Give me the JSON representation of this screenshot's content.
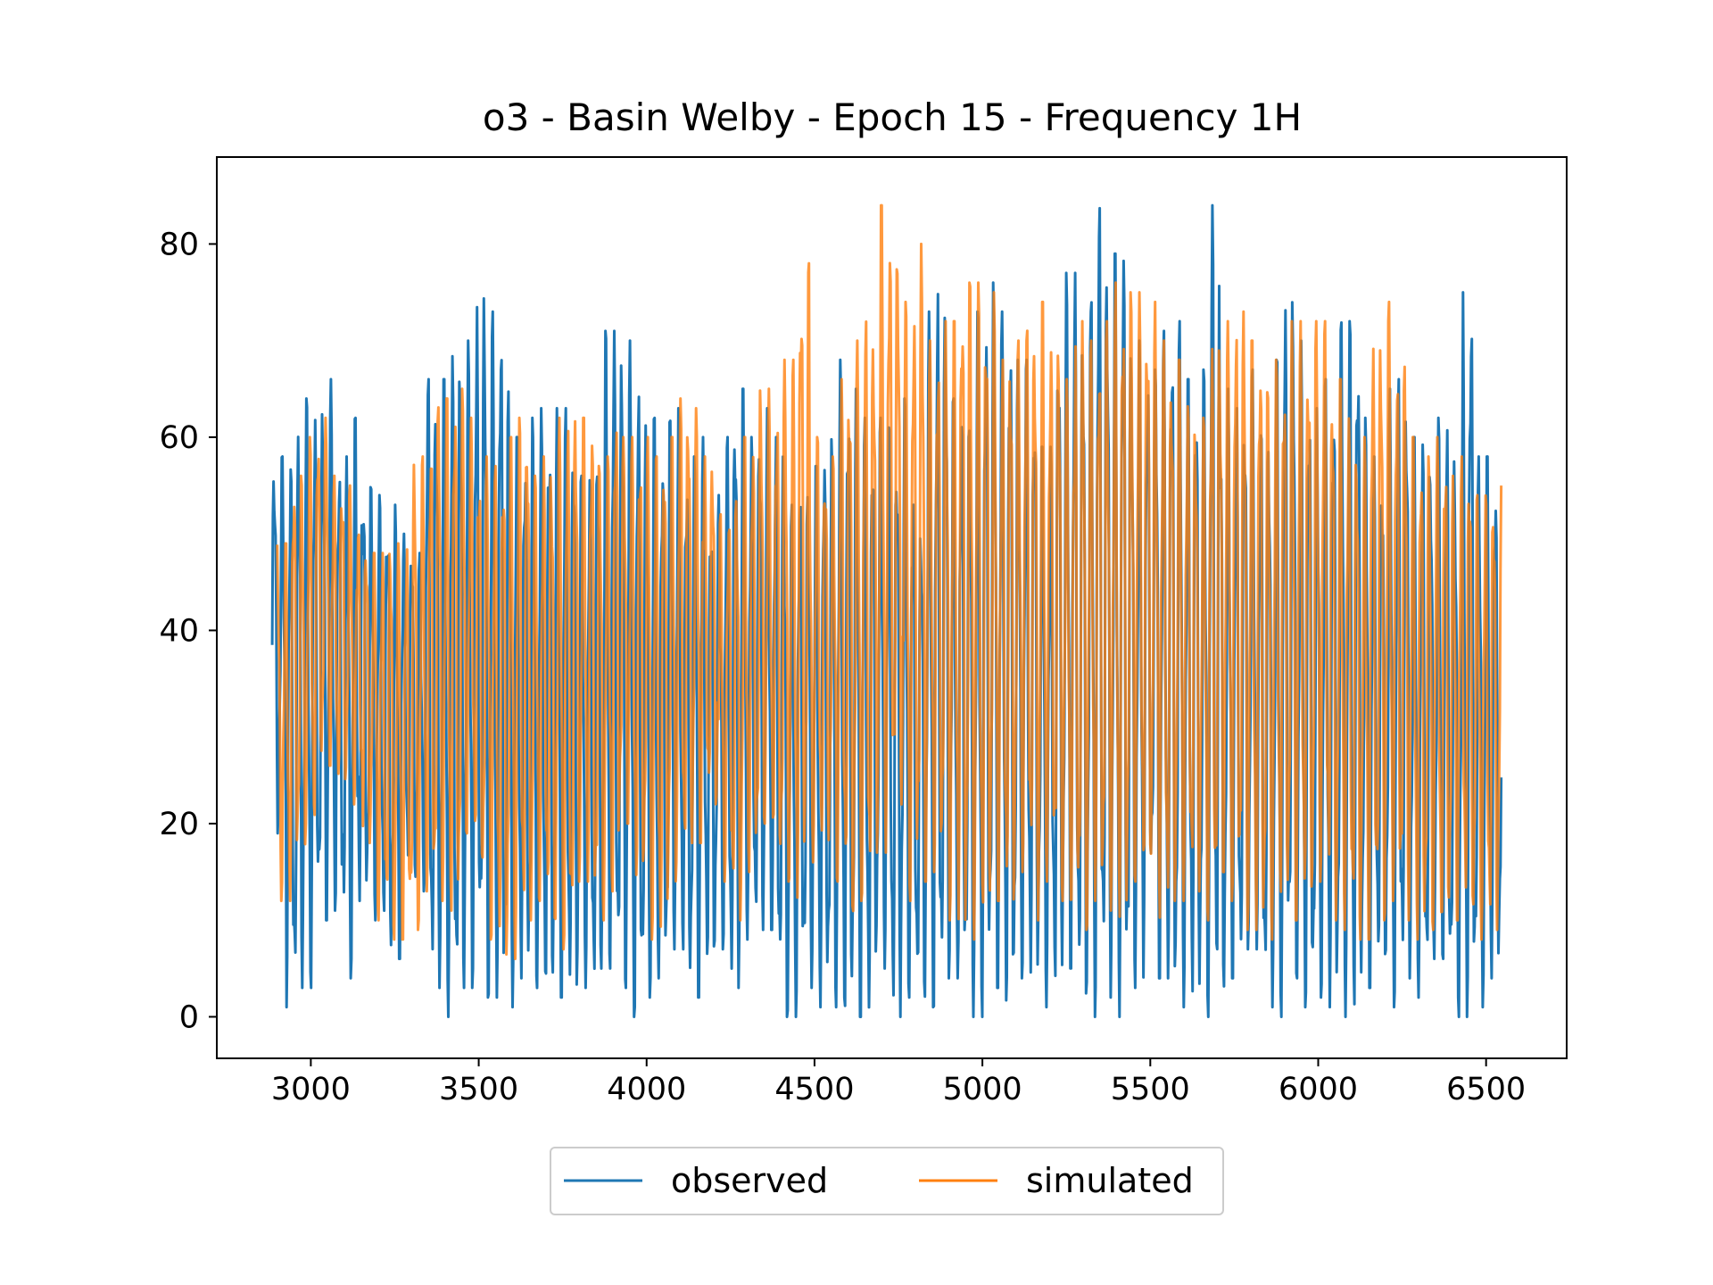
{
  "chart_data": {
    "type": "line",
    "title": "o3 - Basin Welby - Epoch 15 - Frequency 1H",
    "xlabel": "",
    "ylabel": "",
    "xlim": [
      2720,
      6740
    ],
    "ylim": [
      -4.3,
      89
    ],
    "x_ticks": [
      3000,
      3500,
      4000,
      4500,
      5000,
      5500,
      6000,
      6500
    ],
    "y_ticks": [
      0,
      20,
      40,
      60,
      80
    ],
    "grid": false,
    "legend_position": "bottom-center",
    "series": [
      {
        "name": "observed",
        "color": "#1f77b4",
        "x_start": 2885,
        "x_end": 6545,
        "peak_samples": [
          58,
          58,
          64,
          63,
          66,
          58,
          62,
          55,
          54,
          53,
          50,
          48,
          66,
          66,
          69,
          70,
          75,
          73,
          65,
          60,
          62,
          63,
          63,
          62,
          56,
          61,
          71,
          70,
          66,
          62,
          59,
          63,
          58,
          60,
          54,
          60,
          65,
          60,
          63,
          60,
          53,
          55,
          57,
          60,
          68,
          65,
          62,
          62,
          61,
          64,
          53,
          73,
          75,
          64,
          63,
          73,
          76,
          73,
          68,
          66,
          59,
          73,
          77,
          73,
          85,
          79,
          81,
          70,
          67,
          71,
          72,
          66,
          67,
          84,
          65,
          63,
          67,
          62,
          68,
          75,
          70,
          63,
          66,
          72,
          72,
          62,
          58,
          65,
          66,
          60,
          59,
          62,
          58,
          75,
          58,
          57
        ],
        "trough_samples": [
          19,
          1,
          3,
          10,
          11,
          4,
          12,
          10,
          6,
          15,
          13,
          3,
          0,
          3,
          5,
          2,
          1,
          4,
          3,
          2,
          2,
          3,
          1,
          5,
          3,
          0,
          2,
          4,
          7,
          2,
          5,
          7,
          3,
          8,
          9,
          2,
          0,
          3,
          1,
          1,
          0,
          0,
          5,
          0,
          2,
          2,
          1,
          4,
          2,
          0,
          3,
          1,
          4,
          4,
          1,
          5,
          2,
          0,
          2,
          0,
          3,
          12,
          4,
          1,
          2,
          0,
          2,
          4,
          7,
          1,
          0,
          4,
          1,
          2,
          1,
          0,
          3,
          5,
          1,
          4,
          2,
          6,
          2,
          0,
          1,
          4
        ]
      },
      {
        "name": "simulated",
        "color": "#ff7f0e",
        "x_start": 2900,
        "x_end": 6545,
        "peak_samples": [
          49,
          56,
          60,
          62,
          56,
          55,
          50,
          48,
          50,
          49,
          58,
          60,
          64,
          65,
          62,
          58,
          57,
          60,
          62,
          56,
          58,
          62,
          63,
          62,
          58,
          64,
          60,
          60,
          58,
          60,
          64,
          63,
          58,
          52,
          55,
          60,
          65,
          64,
          68,
          78,
          60,
          58,
          66,
          70,
          72,
          84,
          80,
          74,
          80,
          70,
          72,
          77,
          76,
          75,
          68,
          70,
          72,
          74,
          70,
          66,
          72,
          70,
          72,
          76,
          75,
          74,
          70,
          68,
          64,
          62,
          70,
          72,
          73,
          70,
          65,
          68,
          72,
          70,
          72,
          66,
          62,
          60,
          70,
          74,
          68,
          60,
          58,
          60,
          56,
          58,
          54,
          55
        ],
        "trough_samples": [
          12,
          16,
          20,
          26,
          24,
          22,
          18,
          10,
          8,
          9,
          13,
          12,
          11,
          19,
          14,
          8,
          6,
          10,
          12,
          10,
          7,
          14,
          10,
          13,
          20,
          14,
          8,
          12,
          16,
          18,
          22,
          14,
          10,
          15,
          20,
          14,
          12,
          16,
          18,
          14,
          10,
          12,
          17,
          22,
          12,
          14,
          15,
          10,
          8,
          9,
          12,
          12,
          15,
          10,
          14,
          12,
          9,
          12,
          11,
          10,
          14,
          15,
          10,
          12,
          13,
          10,
          15,
          12,
          9,
          8,
          12,
          10,
          12,
          14,
          10,
          9,
          8,
          10,
          12,
          10,
          8,
          9,
          10,
          12,
          8,
          9
        ]
      }
    ]
  }
}
